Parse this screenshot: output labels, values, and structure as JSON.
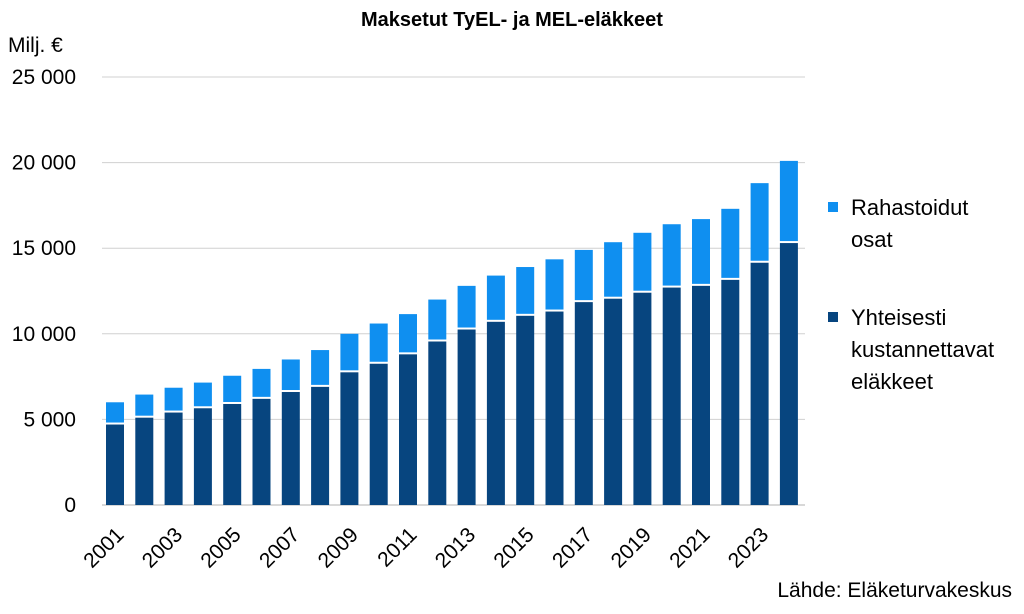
{
  "chart_data": {
    "type": "bar",
    "stacked": true,
    "title": "Maksetut TyEL- ja MEL-eläkkeet",
    "ylabel": "Milj. €",
    "xlabel": "",
    "ylim": [
      0,
      25000
    ],
    "yticks": [
      0,
      5000,
      10000,
      15000,
      20000,
      25000
    ],
    "ytick_labels": [
      "0",
      "5 000",
      "10 000",
      "15 000",
      "20 000",
      "25 000"
    ],
    "grid": true,
    "legend_position": "right",
    "categories": [
      "2001",
      "2002",
      "2003",
      "2004",
      "2005",
      "2006",
      "2007",
      "2008",
      "2009",
      "2010",
      "2011",
      "2012",
      "2013",
      "2014",
      "2015",
      "2016",
      "2017",
      "2018",
      "2019",
      "2020",
      "2021",
      "2022",
      "2023",
      "2024"
    ],
    "xtick_labels_shown": [
      "2001",
      "2003",
      "2005",
      "2007",
      "2009",
      "2011",
      "2013",
      "2015",
      "2017",
      "2019",
      "2021",
      "2023"
    ],
    "series": [
      {
        "name": "Yhteisesti kustannettavat eläkkeet",
        "legend_lines": [
          "Yhteisesti",
          "kustannettavat",
          "eläkkeet"
        ],
        "color": "#07457f",
        "values": [
          4700,
          5100,
          5400,
          5650,
          5900,
          6200,
          6600,
          6900,
          7750,
          8250,
          8800,
          9550,
          10250,
          10700,
          11050,
          11300,
          11850,
          12050,
          12400,
          12700,
          12800,
          13150,
          14150,
          15300
        ]
      },
      {
        "name": "Rahastoidut osat",
        "legend_lines": [
          "Rahastoidut",
          "osat"
        ],
        "color": "#0f8ff0",
        "values": [
          1300,
          1350,
          1450,
          1500,
          1650,
          1750,
          1900,
          2150,
          2250,
          2350,
          2350,
          2450,
          2550,
          2700,
          2850,
          3050,
          3050,
          3300,
          3500,
          3700,
          3900,
          4150,
          4650,
          4800
        ]
      }
    ]
  },
  "source": "Lähde: Eläketurvakeskus"
}
